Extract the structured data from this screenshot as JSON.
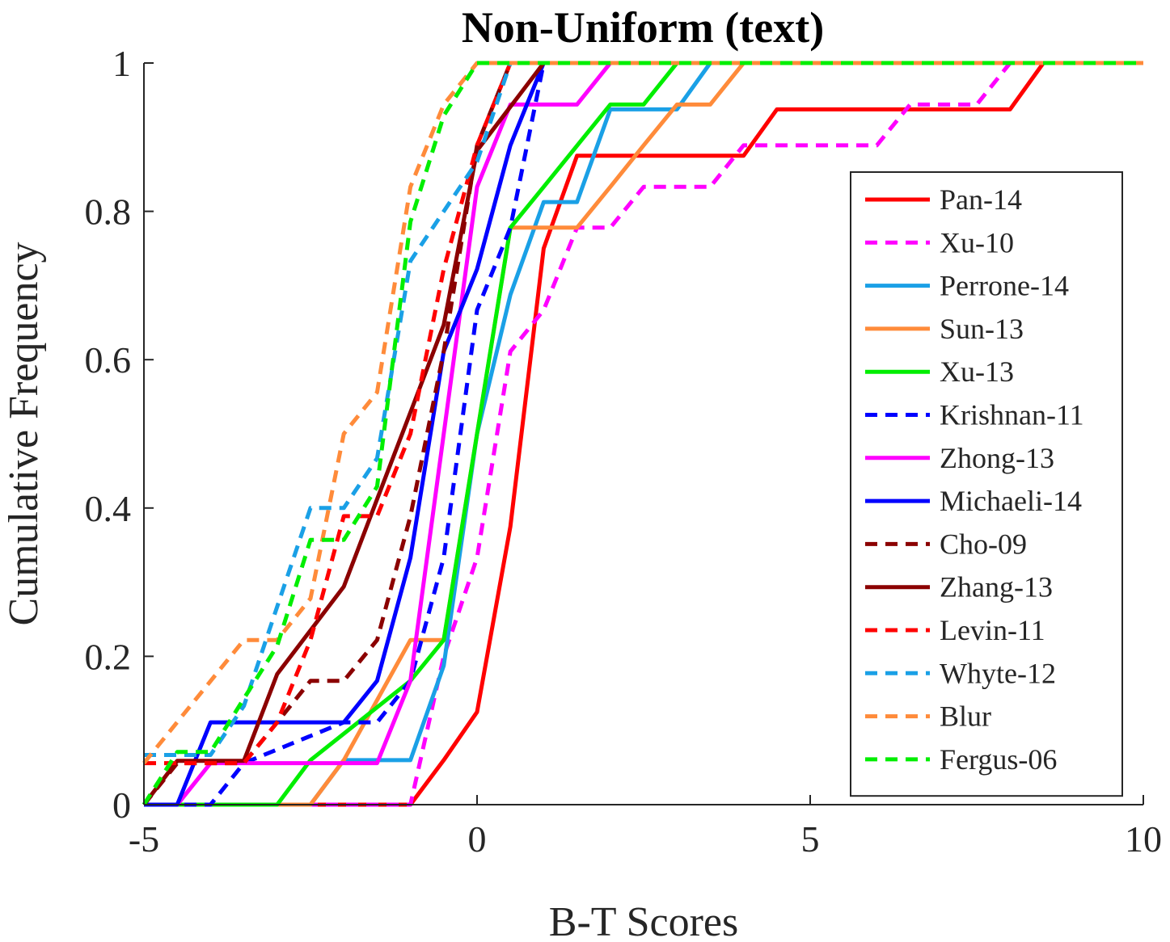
{
  "chart_data": {
    "type": "line",
    "title": "Non-Uniform (text)",
    "xlabel": "B-T Scores",
    "ylabel": "Cumulative Frequency",
    "xlim": [
      -5,
      10
    ],
    "ylim": [
      0,
      1
    ],
    "xticks": [
      "-5",
      "0",
      "5",
      "10"
    ],
    "yticks": [
      "0",
      "0.2",
      "0.4",
      "0.6",
      "0.8",
      "1"
    ],
    "grid": false,
    "legend_position": "right",
    "series": [
      {
        "name": "Pan-14",
        "color": "#ff0000",
        "dash": false,
        "points": [
          [
            -5,
            0
          ],
          [
            -1,
            0
          ],
          [
            -0.5,
            0.06
          ],
          [
            0,
            0.125
          ],
          [
            0.5,
            0.375
          ],
          [
            1,
            0.75
          ],
          [
            1.5,
            0.875
          ],
          [
            4,
            0.875
          ],
          [
            4.5,
            0.9375
          ],
          [
            8,
            0.9375
          ],
          [
            8.5,
            1
          ],
          [
            10,
            1
          ]
        ]
      },
      {
        "name": "Xu-10",
        "color": "#ff00ff",
        "dash": true,
        "points": [
          [
            -5,
            0
          ],
          [
            -1,
            0
          ],
          [
            -0.5,
            0.2
          ],
          [
            0,
            0.333
          ],
          [
            0.5,
            0.611
          ],
          [
            1,
            0.667
          ],
          [
            1.5,
            0.778
          ],
          [
            2,
            0.778
          ],
          [
            2.5,
            0.833
          ],
          [
            3.5,
            0.833
          ],
          [
            4,
            0.889
          ],
          [
            6,
            0.889
          ],
          [
            6.5,
            0.944
          ],
          [
            7.5,
            0.944
          ],
          [
            8,
            1
          ],
          [
            10,
            1
          ]
        ]
      },
      {
        "name": "Perrone-14",
        "color": "#1aa0e6",
        "dash": false,
        "points": [
          [
            -5,
            0
          ],
          [
            -2.5,
            0
          ],
          [
            -2,
            0.06
          ],
          [
            -1,
            0.06
          ],
          [
            -0.5,
            0.1875
          ],
          [
            0,
            0.5
          ],
          [
            0.5,
            0.6875
          ],
          [
            1,
            0.8125
          ],
          [
            1.5,
            0.8125
          ],
          [
            2,
            0.9375
          ],
          [
            3,
            0.9375
          ],
          [
            3.5,
            1
          ],
          [
            10,
            1
          ]
        ]
      },
      {
        "name": "Sun-13",
        "color": "#ff8b3a",
        "dash": false,
        "points": [
          [
            -5,
            0
          ],
          [
            -2.5,
            0
          ],
          [
            -2,
            0.06
          ],
          [
            -1,
            0.222
          ],
          [
            -0.5,
            0.222
          ],
          [
            0,
            0.5
          ],
          [
            0.5,
            0.778
          ],
          [
            1.5,
            0.778
          ],
          [
            2,
            0.833
          ],
          [
            2.5,
            0.889
          ],
          [
            3,
            0.944
          ],
          [
            3.5,
            0.944
          ],
          [
            4,
            1
          ],
          [
            10,
            1
          ]
        ]
      },
      {
        "name": "Xu-13",
        "color": "#00ee00",
        "dash": false,
        "points": [
          [
            -5,
            0
          ],
          [
            -3,
            0
          ],
          [
            -2.5,
            0.06
          ],
          [
            -1,
            0.167
          ],
          [
            -0.5,
            0.222
          ],
          [
            0,
            0.5
          ],
          [
            0.5,
            0.778
          ],
          [
            1,
            0.833
          ],
          [
            2,
            0.944
          ],
          [
            2.5,
            0.944
          ],
          [
            3,
            1
          ],
          [
            10,
            1
          ]
        ]
      },
      {
        "name": "Krishnan-11",
        "color": "#0000ff",
        "dash": true,
        "points": [
          [
            -5,
            0
          ],
          [
            -4,
            0
          ],
          [
            -3.5,
            0.056
          ],
          [
            -2,
            0.111
          ],
          [
            -1.5,
            0.111
          ],
          [
            -1,
            0.167
          ],
          [
            -0.5,
            0.333
          ],
          [
            0,
            0.667
          ],
          [
            0.5,
            0.778
          ],
          [
            1,
            1
          ],
          [
            10,
            1
          ]
        ]
      },
      {
        "name": "Zhong-13",
        "color": "#ff00ff",
        "dash": false,
        "points": [
          [
            -5,
            0
          ],
          [
            -4.5,
            0
          ],
          [
            -4,
            0.056
          ],
          [
            -1.5,
            0.056
          ],
          [
            -1,
            0.167
          ],
          [
            -0.5,
            0.5
          ],
          [
            0,
            0.833
          ],
          [
            0.5,
            0.944
          ],
          [
            1.5,
            0.944
          ],
          [
            2,
            1
          ],
          [
            10,
            1
          ]
        ]
      },
      {
        "name": "Michaeli-14",
        "color": "#0000ff",
        "dash": false,
        "points": [
          [
            -5,
            0
          ],
          [
            -4.5,
            0
          ],
          [
            -4,
            0.111
          ],
          [
            -2,
            0.111
          ],
          [
            -1.5,
            0.167
          ],
          [
            -1,
            0.333
          ],
          [
            -0.5,
            0.611
          ],
          [
            0,
            0.722
          ],
          [
            0.5,
            0.889
          ],
          [
            1,
            1
          ],
          [
            10,
            1
          ]
        ]
      },
      {
        "name": "Cho-09",
        "color": "#8b0000",
        "dash": true,
        "points": [
          [
            -5,
            0
          ],
          [
            -4.5,
            0.056
          ],
          [
            -3.5,
            0.056
          ],
          [
            -3,
            0.111
          ],
          [
            -2.5,
            0.167
          ],
          [
            -2,
            0.167
          ],
          [
            -1.5,
            0.222
          ],
          [
            -1,
            0.389
          ],
          [
            -0.5,
            0.611
          ],
          [
            0,
            0.889
          ],
          [
            0.5,
            1
          ],
          [
            10,
            1
          ]
        ]
      },
      {
        "name": "Zhang-13",
        "color": "#8b0000",
        "dash": false,
        "points": [
          [
            -5,
            0
          ],
          [
            -4.5,
            0.059
          ],
          [
            -3.5,
            0.059
          ],
          [
            -3,
            0.176
          ],
          [
            -2,
            0.294
          ],
          [
            -1.5,
            0.412
          ],
          [
            -1,
            0.529
          ],
          [
            -0.5,
            0.647
          ],
          [
            0,
            0.882
          ],
          [
            0.5,
            0.941
          ],
          [
            1,
            1
          ],
          [
            10,
            1
          ]
        ]
      },
      {
        "name": "Levin-11",
        "color": "#ff0000",
        "dash": true,
        "points": [
          [
            -5,
            0.056
          ],
          [
            -3.5,
            0.056
          ],
          [
            -3,
            0.111
          ],
          [
            -2.5,
            0.222
          ],
          [
            -2,
            0.389
          ],
          [
            -1.5,
            0.389
          ],
          [
            -1,
            0.5
          ],
          [
            -0.5,
            0.722
          ],
          [
            0,
            0.889
          ],
          [
            0.5,
            1
          ],
          [
            10,
            1
          ]
        ]
      },
      {
        "name": "Whyte-12",
        "color": "#1aa0e6",
        "dash": true,
        "points": [
          [
            -5,
            0.067
          ],
          [
            -4,
            0.067
          ],
          [
            -3.5,
            0.133
          ],
          [
            -3,
            0.267
          ],
          [
            -2.5,
            0.4
          ],
          [
            -2,
            0.4
          ],
          [
            -1.5,
            0.467
          ],
          [
            -1,
            0.733
          ],
          [
            -0.5,
            0.8
          ],
          [
            0,
            0.867
          ],
          [
            0.5,
            1
          ],
          [
            10,
            1
          ]
        ]
      },
      {
        "name": "Blur",
        "color": "#ff8b3a",
        "dash": true,
        "points": [
          [
            -5,
            0.056
          ],
          [
            -3.5,
            0.222
          ],
          [
            -3,
            0.222
          ],
          [
            -2.5,
            0.278
          ],
          [
            -2,
            0.5
          ],
          [
            -1.5,
            0.556
          ],
          [
            -1,
            0.833
          ],
          [
            -0.5,
            0.944
          ],
          [
            0,
            1
          ],
          [
            10,
            1
          ]
        ]
      },
      {
        "name": "Fergus-06",
        "color": "#00ee00",
        "dash": true,
        "points": [
          [
            -5,
            0
          ],
          [
            -4.5,
            0.071
          ],
          [
            -4,
            0.071
          ],
          [
            -3.5,
            0.143
          ],
          [
            -3,
            0.214
          ],
          [
            -2.5,
            0.357
          ],
          [
            -2,
            0.357
          ],
          [
            -1.5,
            0.429
          ],
          [
            -1,
            0.786
          ],
          [
            -0.5,
            0.929
          ],
          [
            0,
            1
          ],
          [
            10,
            1
          ]
        ]
      }
    ]
  }
}
